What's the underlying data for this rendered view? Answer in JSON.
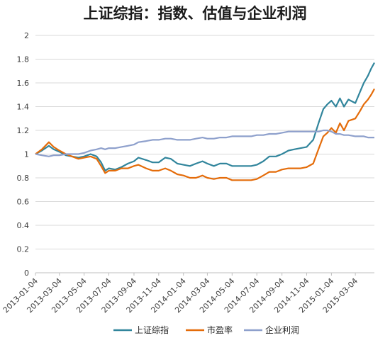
{
  "chart_data": {
    "type": "line",
    "title": "上证综指：指数、估值与企业利润",
    "ylim": [
      0,
      2
    ],
    "grid": true,
    "legend_position": "bottom",
    "y_ticks": [
      "0",
      "0.2",
      "0.4",
      "0.6",
      "0.8",
      "1",
      "1.2",
      "1.4",
      "1.6",
      "1.8",
      "2"
    ],
    "x_ticks": [
      "2013-01-04",
      "2013-03-04",
      "2013-05-04",
      "2013-07-04",
      "2013-09-04",
      "2013-11-04",
      "2014-01-04",
      "2014-03-04",
      "2014-05-04",
      "2014-07-04",
      "2014-09-04",
      "2014-11-04",
      "2015-01-04",
      "2015-03-04"
    ],
    "x_range": [
      "2013-01-04",
      "2015-04-20"
    ],
    "series": [
      {
        "name": "上证综指",
        "color": "#31859c",
        "points": [
          [
            "2013-01-04",
            1.0
          ],
          [
            "2013-01-20",
            1.03
          ],
          [
            "2013-02-06",
            1.07
          ],
          [
            "2013-02-18",
            1.04
          ],
          [
            "2013-03-04",
            1.02
          ],
          [
            "2013-03-20",
            0.99
          ],
          [
            "2013-04-04",
            0.98
          ],
          [
            "2013-04-20",
            0.97
          ],
          [
            "2013-05-04",
            0.98
          ],
          [
            "2013-05-20",
            1.0
          ],
          [
            "2013-06-04",
            0.98
          ],
          [
            "2013-06-15",
            0.93
          ],
          [
            "2013-06-25",
            0.86
          ],
          [
            "2013-07-04",
            0.88
          ],
          [
            "2013-07-20",
            0.87
          ],
          [
            "2013-08-04",
            0.89
          ],
          [
            "2013-08-20",
            0.92
          ],
          [
            "2013-09-04",
            0.94
          ],
          [
            "2013-09-15",
            0.97
          ],
          [
            "2013-10-04",
            0.95
          ],
          [
            "2013-10-20",
            0.93
          ],
          [
            "2013-11-04",
            0.93
          ],
          [
            "2013-11-20",
            0.97
          ],
          [
            "2013-12-04",
            0.96
          ],
          [
            "2013-12-20",
            0.92
          ],
          [
            "2014-01-04",
            0.91
          ],
          [
            "2014-01-20",
            0.9
          ],
          [
            "2014-02-04",
            0.92
          ],
          [
            "2014-02-20",
            0.94
          ],
          [
            "2014-03-04",
            0.92
          ],
          [
            "2014-03-20",
            0.9
          ],
          [
            "2014-04-04",
            0.92
          ],
          [
            "2014-04-20",
            0.92
          ],
          [
            "2014-05-04",
            0.9
          ],
          [
            "2014-05-20",
            0.9
          ],
          [
            "2014-06-04",
            0.9
          ],
          [
            "2014-06-20",
            0.9
          ],
          [
            "2014-07-04",
            0.91
          ],
          [
            "2014-07-20",
            0.94
          ],
          [
            "2014-08-04",
            0.98
          ],
          [
            "2014-08-20",
            0.98
          ],
          [
            "2014-09-04",
            1.0
          ],
          [
            "2014-09-20",
            1.03
          ],
          [
            "2014-10-04",
            1.04
          ],
          [
            "2014-10-20",
            1.05
          ],
          [
            "2014-11-04",
            1.06
          ],
          [
            "2014-11-20",
            1.12
          ],
          [
            "2014-12-04",
            1.27
          ],
          [
            "2014-12-15",
            1.38
          ],
          [
            "2014-12-25",
            1.42
          ],
          [
            "2015-01-04",
            1.45
          ],
          [
            "2015-01-15",
            1.4
          ],
          [
            "2015-01-25",
            1.47
          ],
          [
            "2015-02-04",
            1.4
          ],
          [
            "2015-02-15",
            1.46
          ],
          [
            "2015-03-04",
            1.43
          ],
          [
            "2015-03-15",
            1.52
          ],
          [
            "2015-03-25",
            1.6
          ],
          [
            "2015-04-04",
            1.66
          ],
          [
            "2015-04-12",
            1.72
          ],
          [
            "2015-04-20",
            1.77
          ]
        ]
      },
      {
        "name": "市盈率",
        "color": "#e46c0a",
        "points": [
          [
            "2013-01-04",
            1.0
          ],
          [
            "2013-01-20",
            1.04
          ],
          [
            "2013-02-06",
            1.1
          ],
          [
            "2013-02-18",
            1.06
          ],
          [
            "2013-03-04",
            1.03
          ],
          [
            "2013-03-20",
            1.0
          ],
          [
            "2013-04-04",
            0.98
          ],
          [
            "2013-04-20",
            0.96
          ],
          [
            "2013-05-04",
            0.97
          ],
          [
            "2013-05-20",
            0.98
          ],
          [
            "2013-06-04",
            0.96
          ],
          [
            "2013-06-15",
            0.9
          ],
          [
            "2013-06-25",
            0.84
          ],
          [
            "2013-07-04",
            0.86
          ],
          [
            "2013-07-20",
            0.86
          ],
          [
            "2013-08-04",
            0.88
          ],
          [
            "2013-08-20",
            0.88
          ],
          [
            "2013-09-04",
            0.9
          ],
          [
            "2013-09-15",
            0.91
          ],
          [
            "2013-10-04",
            0.88
          ],
          [
            "2013-10-20",
            0.86
          ],
          [
            "2013-11-04",
            0.86
          ],
          [
            "2013-11-20",
            0.88
          ],
          [
            "2013-12-04",
            0.86
          ],
          [
            "2013-12-20",
            0.83
          ],
          [
            "2014-01-04",
            0.82
          ],
          [
            "2014-01-20",
            0.8
          ],
          [
            "2014-02-04",
            0.8
          ],
          [
            "2014-02-20",
            0.82
          ],
          [
            "2014-03-04",
            0.8
          ],
          [
            "2014-03-20",
            0.79
          ],
          [
            "2014-04-04",
            0.8
          ],
          [
            "2014-04-20",
            0.8
          ],
          [
            "2014-05-04",
            0.78
          ],
          [
            "2014-05-20",
            0.78
          ],
          [
            "2014-06-04",
            0.78
          ],
          [
            "2014-06-20",
            0.78
          ],
          [
            "2014-07-04",
            0.79
          ],
          [
            "2014-07-20",
            0.82
          ],
          [
            "2014-08-04",
            0.85
          ],
          [
            "2014-08-20",
            0.85
          ],
          [
            "2014-09-04",
            0.87
          ],
          [
            "2014-09-20",
            0.88
          ],
          [
            "2014-10-04",
            0.88
          ],
          [
            "2014-10-20",
            0.88
          ],
          [
            "2014-11-04",
            0.89
          ],
          [
            "2014-11-20",
            0.92
          ],
          [
            "2014-12-04",
            1.05
          ],
          [
            "2014-12-15",
            1.15
          ],
          [
            "2014-12-25",
            1.18
          ],
          [
            "2015-01-04",
            1.22
          ],
          [
            "2015-01-15",
            1.18
          ],
          [
            "2015-01-25",
            1.26
          ],
          [
            "2015-02-04",
            1.2
          ],
          [
            "2015-02-15",
            1.28
          ],
          [
            "2015-03-04",
            1.3
          ],
          [
            "2015-03-15",
            1.36
          ],
          [
            "2015-03-25",
            1.42
          ],
          [
            "2015-04-04",
            1.46
          ],
          [
            "2015-04-12",
            1.5
          ],
          [
            "2015-04-20",
            1.55
          ]
        ]
      },
      {
        "name": "企业利润",
        "color": "#8ea0cc",
        "points": [
          [
            "2013-01-04",
            1.0
          ],
          [
            "2013-01-20",
            0.99
          ],
          [
            "2013-02-06",
            0.98
          ],
          [
            "2013-02-18",
            0.99
          ],
          [
            "2013-03-04",
            0.99
          ],
          [
            "2013-03-20",
            1.0
          ],
          [
            "2013-04-04",
            1.0
          ],
          [
            "2013-04-20",
            1.0
          ],
          [
            "2013-05-04",
            1.01
          ],
          [
            "2013-05-20",
            1.03
          ],
          [
            "2013-06-04",
            1.04
          ],
          [
            "2013-06-15",
            1.05
          ],
          [
            "2013-06-25",
            1.04
          ],
          [
            "2013-07-04",
            1.05
          ],
          [
            "2013-07-20",
            1.05
          ],
          [
            "2013-08-04",
            1.06
          ],
          [
            "2013-08-20",
            1.07
          ],
          [
            "2013-09-04",
            1.08
          ],
          [
            "2013-09-15",
            1.1
          ],
          [
            "2013-10-04",
            1.11
          ],
          [
            "2013-10-20",
            1.12
          ],
          [
            "2013-11-04",
            1.12
          ],
          [
            "2013-11-20",
            1.13
          ],
          [
            "2013-12-04",
            1.13
          ],
          [
            "2013-12-20",
            1.12
          ],
          [
            "2014-01-04",
            1.12
          ],
          [
            "2014-01-20",
            1.12
          ],
          [
            "2014-02-04",
            1.13
          ],
          [
            "2014-02-20",
            1.14
          ],
          [
            "2014-03-04",
            1.13
          ],
          [
            "2014-03-20",
            1.13
          ],
          [
            "2014-04-04",
            1.14
          ],
          [
            "2014-04-20",
            1.14
          ],
          [
            "2014-05-04",
            1.15
          ],
          [
            "2014-05-20",
            1.15
          ],
          [
            "2014-06-04",
            1.15
          ],
          [
            "2014-06-20",
            1.15
          ],
          [
            "2014-07-04",
            1.16
          ],
          [
            "2014-07-20",
            1.16
          ],
          [
            "2014-08-04",
            1.17
          ],
          [
            "2014-08-20",
            1.17
          ],
          [
            "2014-09-04",
            1.18
          ],
          [
            "2014-09-20",
            1.19
          ],
          [
            "2014-10-04",
            1.19
          ],
          [
            "2014-10-20",
            1.19
          ],
          [
            "2014-11-04",
            1.19
          ],
          [
            "2014-11-20",
            1.19
          ],
          [
            "2014-12-04",
            1.19
          ],
          [
            "2014-12-15",
            1.2
          ],
          [
            "2014-12-25",
            1.2
          ],
          [
            "2015-01-04",
            1.19
          ],
          [
            "2015-01-15",
            1.17
          ],
          [
            "2015-01-25",
            1.17
          ],
          [
            "2015-02-04",
            1.16
          ],
          [
            "2015-02-15",
            1.16
          ],
          [
            "2015-03-04",
            1.15
          ],
          [
            "2015-03-15",
            1.15
          ],
          [
            "2015-03-25",
            1.15
          ],
          [
            "2015-04-04",
            1.14
          ],
          [
            "2015-04-12",
            1.14
          ],
          [
            "2015-04-20",
            1.14
          ]
        ]
      }
    ]
  }
}
